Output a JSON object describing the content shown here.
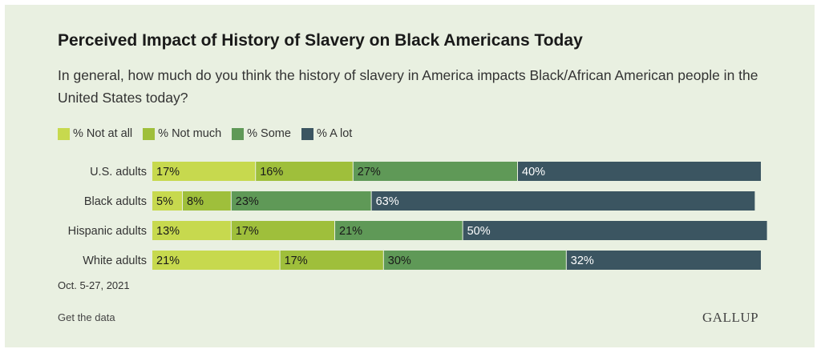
{
  "header": {
    "title": "Perceived Impact of History of Slavery on Black Americans Today",
    "subtitle": "In general, how much do you think the history of slavery in America impacts Black/African American people in the United States today?"
  },
  "legend": [
    {
      "label": "% Not at all",
      "color": "#c7d94e"
    },
    {
      "label": "% Not much",
      "color": "#9fbf3b"
    },
    {
      "label": "% Some",
      "color": "#5f9957"
    },
    {
      "label": "% A lot",
      "color": "#3b5561"
    }
  ],
  "footer": {
    "date": "Oct. 5-27, 2021",
    "get_data": "Get the data",
    "logo": "GALLUP"
  },
  "chart_data": {
    "type": "stacked-bar-horizontal",
    "title": "Perceived Impact of History of Slavery on Black Americans Today",
    "categories": [
      "U.S. adults",
      "Black adults",
      "Hispanic adults",
      "White adults"
    ],
    "series": [
      {
        "name": "% Not at all",
        "values": [
          17,
          5,
          13,
          21
        ],
        "labels": [
          "17%",
          "5%",
          "13%",
          "21%"
        ]
      },
      {
        "name": "% Not much",
        "values": [
          16,
          8,
          17,
          17
        ],
        "labels": [
          "16%",
          "8%",
          "17%",
          "17%"
        ]
      },
      {
        "name": "% Some",
        "values": [
          27,
          23,
          21,
          30
        ],
        "labels": [
          "27%",
          "23%",
          "21%",
          "30%"
        ]
      },
      {
        "name": "% A lot",
        "values": [
          40,
          63,
          50,
          32
        ],
        "labels": [
          "40%",
          "63%",
          "50%",
          "32%"
        ]
      }
    ],
    "legend_position": "top-left"
  }
}
